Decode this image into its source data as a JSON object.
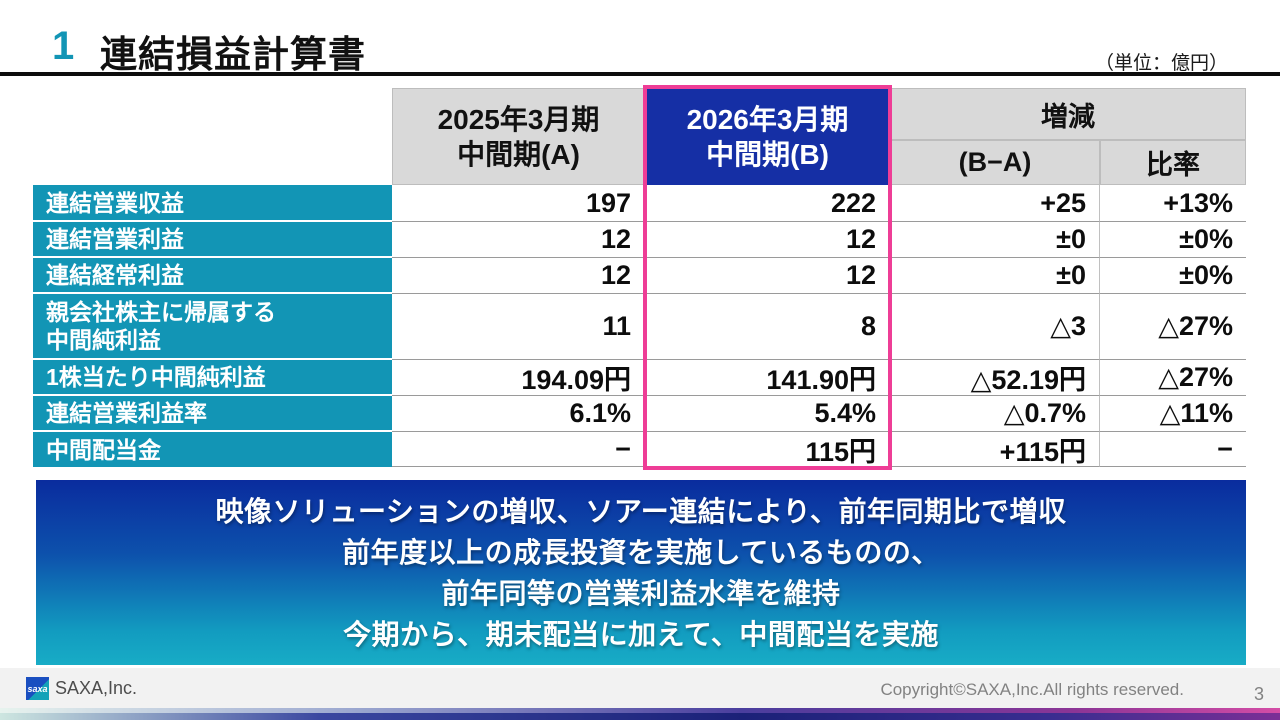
{
  "header": {
    "number": "1",
    "title": "連結損益計算書",
    "unit_note": "（単位：億円）"
  },
  "table": {
    "headers": {
      "col_a": "2025年3月期\n中間期(A)",
      "col_b": "2026年3月期\n中間期(B)",
      "diff_group": "増減",
      "diff": "(B−A)",
      "ratio": "比率"
    },
    "rows": [
      {
        "label": "連結営業収益",
        "a": "197",
        "b": "222",
        "diff": "+25",
        "ratio": "+13%"
      },
      {
        "label": "連結営業利益",
        "a": "12",
        "b": "12",
        "diff": "±0",
        "ratio": "±0%"
      },
      {
        "label": "連結経常利益",
        "a": "12",
        "b": "12",
        "diff": "±0",
        "ratio": "±0%"
      },
      {
        "label": "親会社株主に帰属する\n中間純利益",
        "a": "11",
        "b": "8",
        "diff": "△3",
        "ratio": "△27%"
      },
      {
        "label": "1株当たり中間純利益",
        "a": "194.09円",
        "b": "141.90円",
        "diff": "△52.19円",
        "ratio": "△27%"
      },
      {
        "label": "連結営業利益率",
        "a": "6.1%",
        "b": "5.4%",
        "diff": "△0.7%",
        "ratio": "△11%"
      },
      {
        "label": "中間配当金",
        "a": "−",
        "b": "115円",
        "diff": "+115円",
        "ratio": "−"
      }
    ]
  },
  "message": {
    "lines": [
      "映像ソリューションの増収、ソアー連結により、前年同期比で増収",
      "前年度以上の成長投資を実施しているものの、",
      "前年同等の営業利益水準を維持",
      "今期から、期末配当に加えて、中間配当を実施"
    ]
  },
  "footer": {
    "logo_text": "saxa",
    "company": "SAXA,Inc.",
    "copyright": "Copyright©SAXA,Inc.All rights reserved.",
    "page_number": "3"
  },
  "colors": {
    "accent_teal": "#1295B5",
    "header_blue": "#152FA5",
    "highlight_pink": "#EE3D96",
    "header_gray": "#D9D9D9",
    "message_gradient_top": "#0A2C9E",
    "message_gradient_bottom": "#18ACC6"
  }
}
